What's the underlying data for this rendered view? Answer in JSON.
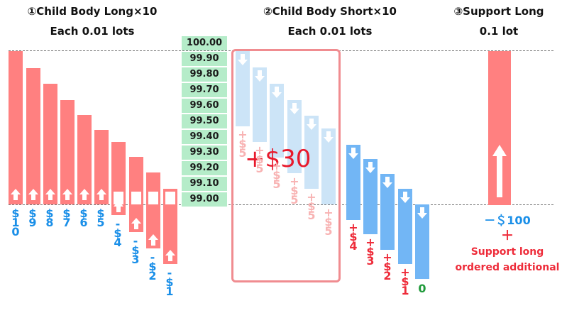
{
  "headers": {
    "col1": {
      "title": "①Child Body Long×10",
      "sub": "Each 0.01 lots"
    },
    "col2": {
      "title": "②Child Body Short×10",
      "sub": "Each 0.01 lots"
    },
    "col3": {
      "title": "③Support Long",
      "sub": "0.1 lot"
    }
  },
  "prices": [
    "100.00",
    "99.90",
    "99.80",
    "99.70",
    "99.60",
    "99.50",
    "99.40",
    "99.30",
    "99.20",
    "99.10",
    "99.00"
  ],
  "long_labels": [
    [
      "$",
      "1",
      "0"
    ],
    [
      "$",
      "9"
    ],
    [
      "$",
      "8"
    ],
    [
      "$",
      "7"
    ],
    [
      "$",
      "6"
    ],
    [
      "$",
      "5"
    ],
    [
      "-",
      "$",
      "4"
    ],
    [
      "-",
      "$",
      "3"
    ],
    [
      "-",
      "$",
      "2"
    ],
    [
      "-",
      "$",
      "1"
    ]
  ],
  "short_faint_labels": [
    [
      "+",
      "$",
      "5"
    ],
    [
      "+",
      "$",
      "5"
    ],
    [
      "+",
      "$",
      "5"
    ],
    [
      "+",
      "$",
      "5"
    ],
    [
      "+",
      "$",
      "5"
    ],
    [
      "+",
      "$",
      "5"
    ]
  ],
  "short_red_labels": [
    [
      "+",
      "$",
      "4"
    ],
    [
      "+",
      "$",
      "3"
    ],
    [
      "+",
      "$",
      "2"
    ],
    [
      "+",
      "$",
      "1"
    ]
  ],
  "short_zero_label": "0",
  "short_total": "+$30",
  "support": {
    "loss": "－＄100",
    "plus": "＋",
    "note_line1": "Support long",
    "note_line2": "ordered additional"
  },
  "colors": {
    "long_bar": "#ff8080",
    "short_bar_light": "#cce4f7",
    "short_bar": "#72b6f5",
    "price_bg": "#b5ecc9",
    "highlight_box": "#f08c90"
  }
}
